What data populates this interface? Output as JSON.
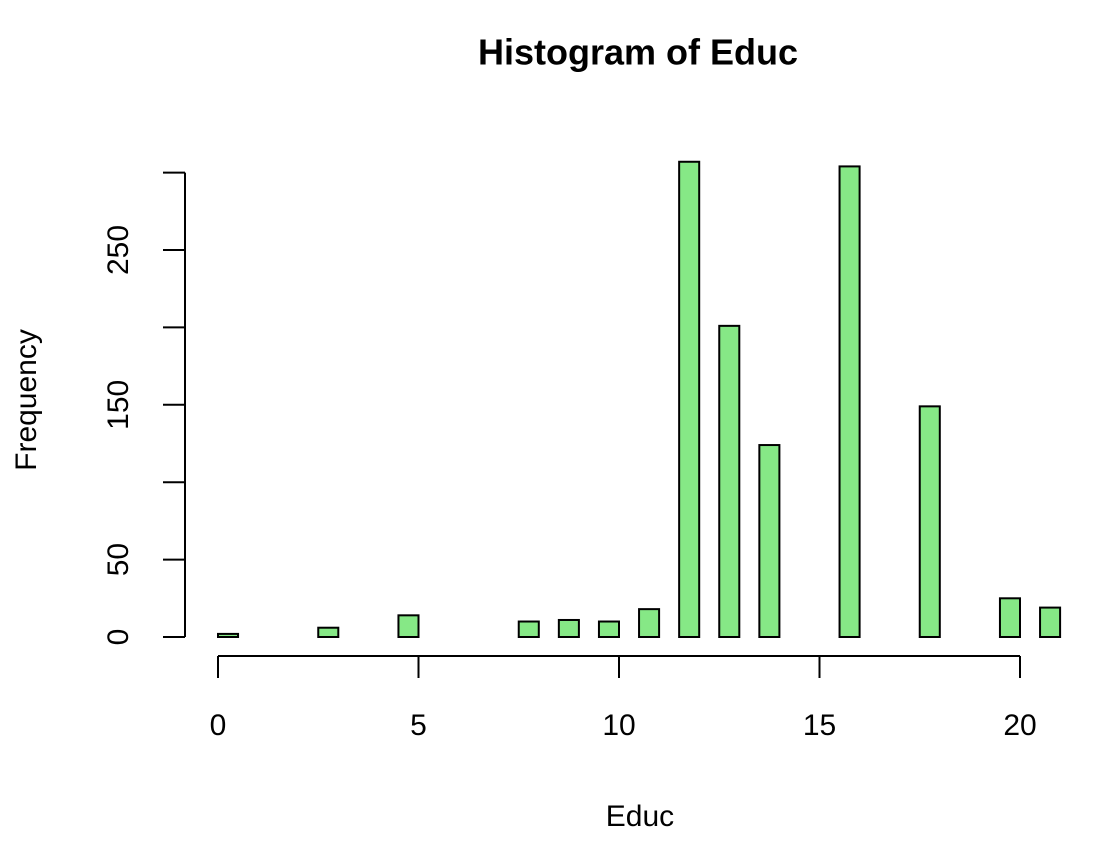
{
  "chart_data": {
    "type": "histogram",
    "title": "Histogram of Educ",
    "xlabel": "Educ",
    "ylabel": "Frequency",
    "bins": [
      0,
      0.5,
      1,
      1.5,
      2,
      2.5,
      3,
      3.5,
      4,
      4.5,
      5,
      5.5,
      6,
      6.5,
      7,
      7.5,
      8,
      8.5,
      9,
      9.5,
      10,
      10.5,
      11,
      11.5,
      12,
      12.5,
      13,
      13.5,
      14,
      14.5,
      15,
      15.5,
      16,
      16.5,
      17,
      17.5,
      18,
      18.5,
      19,
      19.5,
      20,
      20.5,
      21
    ],
    "values": [
      2,
      0,
      0,
      0,
      0,
      6,
      0,
      0,
      0,
      14,
      0,
      0,
      0,
      0,
      0,
      10,
      0,
      11,
      0,
      10,
      0,
      18,
      0,
      307,
      0,
      201,
      0,
      124,
      0,
      0,
      0,
      304,
      0,
      0,
      0,
      149,
      0,
      0,
      0,
      25,
      0,
      19
    ],
    "color": "#86e886",
    "xlim": [
      0,
      21
    ],
    "xticks": [
      0,
      5,
      10,
      15,
      20
    ],
    "ylim": [
      0,
      310
    ],
    "yticks": [
      0,
      50,
      150,
      250
    ],
    "yminor_ticks": [
      100,
      200,
      300
    ]
  }
}
